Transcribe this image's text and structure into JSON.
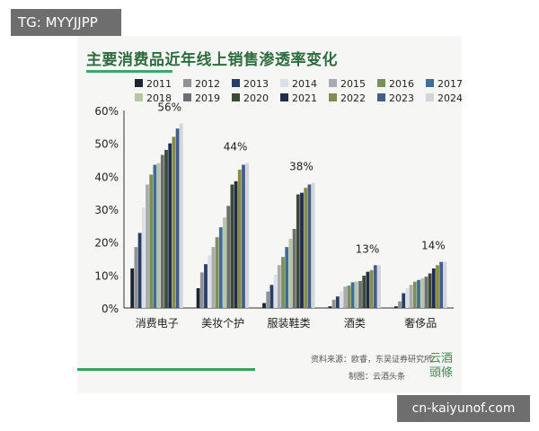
{
  "overlay_tag": "TG: MYYJJPP",
  "domain_tag": "cn-kaiyunof.com",
  "source_line": "资料来源：欧睿，东吴证券研究所",
  "credit_line": "制图：云酒头条",
  "logo_text": "云酒\n頭條",
  "chart_data": {
    "type": "bar",
    "title": "主要消费品近年线上销售渗透率变化",
    "categories": [
      "消费电子",
      "美妆个护",
      "服装鞋类",
      "酒类",
      "奢侈品"
    ],
    "ylim": [
      0,
      0.6
    ],
    "yticks": [
      "0%",
      "10%",
      "20%",
      "30%",
      "40%",
      "50%",
      "60%"
    ],
    "grid": false,
    "legend_position": "top",
    "colors": [
      "#1c2430",
      "#8e9296",
      "#2a3d63",
      "#dcdfe6",
      "#a9acae",
      "#7d8f58",
      "#3f6d99",
      "#b8c4a2",
      "#6b6e73",
      "#3c4a32",
      "#1f2c4a",
      "#868c4f",
      "#425f8a",
      "#d2d6dc"
    ],
    "series": [
      {
        "name": "2011",
        "values": [
          0.12,
          0.06,
          0.015,
          0.005,
          0.005
        ]
      },
      {
        "name": "2012",
        "values": [
          0.185,
          0.108,
          0.05,
          0.025,
          0.02
        ]
      },
      {
        "name": "2013",
        "values": [
          0.228,
          0.133,
          0.07,
          0.035,
          0.045
        ]
      },
      {
        "name": "2014",
        "values": [
          0.305,
          0.16,
          0.102,
          0.05,
          0.06
        ]
      },
      {
        "name": "2015",
        "values": [
          0.375,
          0.185,
          0.13,
          0.065,
          0.07
        ]
      },
      {
        "name": "2016",
        "values": [
          0.405,
          0.215,
          0.155,
          0.068,
          0.08
        ]
      },
      {
        "name": "2017",
        "values": [
          0.435,
          0.245,
          0.185,
          0.078,
          0.085
        ]
      },
      {
        "name": "2018",
        "values": [
          0.44,
          0.275,
          0.21,
          0.08,
          0.09
        ]
      },
      {
        "name": "2019",
        "values": [
          0.465,
          0.31,
          0.24,
          0.082,
          0.095
        ]
      },
      {
        "name": "2020",
        "values": [
          0.48,
          0.375,
          0.345,
          0.098,
          0.105
        ]
      },
      {
        "name": "2021",
        "values": [
          0.5,
          0.385,
          0.35,
          0.11,
          0.12
        ]
      },
      {
        "name": "2022",
        "values": [
          0.52,
          0.42,
          0.365,
          0.115,
          0.13
        ]
      },
      {
        "name": "2023",
        "values": [
          0.545,
          0.435,
          0.375,
          0.13,
          0.14
        ]
      },
      {
        "name": "2024",
        "values": [
          0.56,
          0.44,
          0.38,
          0.13,
          0.14
        ]
      }
    ],
    "annotations": [
      {
        "category": "消费电子",
        "text": "56%"
      },
      {
        "category": "美妆个护",
        "text": "44%"
      },
      {
        "category": "服装鞋类",
        "text": "38%"
      },
      {
        "category": "酒类",
        "text": "13%"
      },
      {
        "category": "奢侈品",
        "text": "14%"
      }
    ]
  }
}
